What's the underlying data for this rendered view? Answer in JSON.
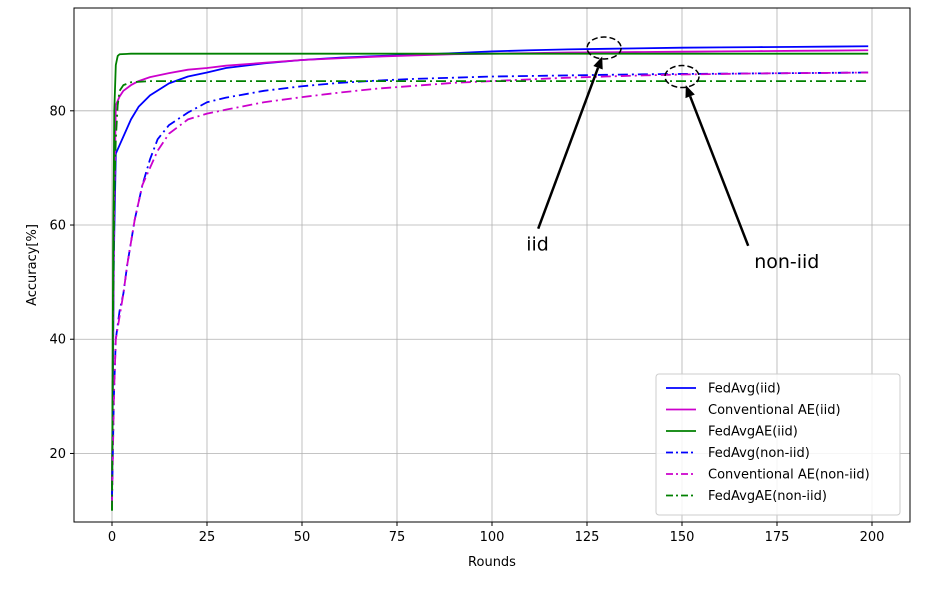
{
  "chart_data": {
    "type": "line",
    "title": "",
    "xlabel": "Rounds",
    "ylabel": "Accuracy[%]",
    "xlim": [
      -10,
      210
    ],
    "ylim": [
      8,
      98
    ],
    "xticks": [
      0,
      25,
      50,
      75,
      100,
      125,
      150,
      175,
      200
    ],
    "yticks": [
      20,
      40,
      60,
      80
    ],
    "grid": true,
    "legend_position": "lower-right",
    "series": [
      {
        "name": "FedAvg(iid)",
        "color": "#0000ff",
        "linestyle": "solid",
        "x": [
          0,
          0.5,
          1,
          2,
          3,
          5,
          7,
          10,
          15,
          20,
          25,
          30,
          40,
          50,
          60,
          70,
          80,
          90,
          100,
          110,
          120,
          130,
          140,
          150,
          160,
          170,
          180,
          190,
          199
        ],
        "y": [
          12.5,
          55,
          72.5,
          74,
          75.5,
          78.5,
          80.7,
          82.7,
          84.8,
          86,
          86.7,
          87.5,
          88.3,
          88.9,
          89.3,
          89.6,
          89.8,
          90.1,
          90.4,
          90.6,
          90.75,
          90.85,
          90.95,
          91.05,
          91.1,
          91.15,
          91.2,
          91.25,
          91.3
        ]
      },
      {
        "name": "Conventional AE(iid)",
        "color": "#cc00cc",
        "linestyle": "solid",
        "x": [
          0,
          0.5,
          1,
          2,
          3,
          5,
          7,
          10,
          15,
          20,
          25,
          30,
          40,
          50,
          60,
          70,
          80,
          90,
          100,
          110,
          120,
          130,
          140,
          150,
          160,
          170,
          180,
          190,
          199
        ],
        "y": [
          14,
          60,
          81,
          82.5,
          83.5,
          84.5,
          85.2,
          85.9,
          86.6,
          87.2,
          87.5,
          87.9,
          88.4,
          88.9,
          89.2,
          89.5,
          89.7,
          89.9,
          90,
          90.1,
          90.2,
          90.25,
          90.3,
          90.35,
          90.4,
          90.45,
          90.5,
          90.55,
          90.6
        ]
      },
      {
        "name": "FedAvgAE(iid)",
        "color": "#008000",
        "linestyle": "solid",
        "x": [
          0,
          0.3,
          0.6,
          1,
          1.5,
          2,
          5,
          10,
          25,
          50,
          75,
          100,
          125,
          150,
          175,
          199
        ],
        "y": [
          10,
          55,
          80,
          88,
          89.6,
          89.9,
          90,
          90,
          90,
          90,
          90,
          90,
          90,
          90,
          90,
          90
        ]
      },
      {
        "name": "FedAvg(non-iid)",
        "color": "#0000ff",
        "linestyle": "dashdot",
        "x": [
          0,
          0.5,
          1,
          2,
          3,
          4,
          5,
          6,
          7,
          8,
          10,
          12,
          15,
          20,
          25,
          30,
          40,
          50,
          60,
          70,
          80,
          90,
          100,
          110,
          120,
          130,
          140,
          150,
          160,
          170,
          180,
          190,
          199
        ],
        "y": [
          12,
          30,
          40,
          45,
          48,
          53,
          57,
          61,
          64,
          67,
          71.5,
          75,
          77.5,
          79.7,
          81.5,
          82.3,
          83.5,
          84.3,
          84.9,
          85.3,
          85.6,
          85.8,
          86,
          86.1,
          86.2,
          86.3,
          86.4,
          86.45,
          86.5,
          86.55,
          86.6,
          86.65,
          86.7
        ]
      },
      {
        "name": "Conventional AE(non-iid)",
        "color": "#cc00cc",
        "linestyle": "dashdot",
        "x": [
          0,
          0.5,
          1,
          2,
          3,
          4,
          5,
          6,
          7,
          8,
          10,
          12,
          15,
          20,
          25,
          30,
          40,
          50,
          60,
          70,
          80,
          90,
          100,
          110,
          120,
          130,
          140,
          150,
          160,
          170,
          180,
          190,
          199
        ],
        "y": [
          11,
          30,
          40,
          44,
          48,
          53,
          57,
          61,
          64,
          67,
          70,
          73,
          76,
          78.5,
          79.5,
          80.2,
          81.5,
          82.4,
          83.2,
          83.9,
          84.4,
          84.9,
          85.2,
          85.5,
          85.8,
          86,
          86.2,
          86.35,
          86.45,
          86.55,
          86.6,
          86.65,
          86.7
        ]
      },
      {
        "name": "FedAvgAE(non-iid)",
        "color": "#008000",
        "linestyle": "dashdot",
        "x": [
          0,
          0.3,
          0.6,
          1,
          1.5,
          2,
          3,
          5,
          10,
          25,
          50,
          75,
          100,
          125,
          150,
          175,
          199
        ],
        "y": [
          10,
          45,
          65,
          75,
          81,
          83.5,
          84.5,
          85,
          85.2,
          85.2,
          85.2,
          85.2,
          85.2,
          85.2,
          85.2,
          85.2,
          85.2
        ]
      }
    ],
    "annotations": [
      {
        "text": "iid",
        "text_x": 109,
        "text_y": 55.5,
        "target_x": 129,
        "target_y": 89.5,
        "ellipse_cx": 129.5,
        "ellipse_cy": 91.0
      },
      {
        "text": "non-iid",
        "text_x": 169,
        "text_y": 52.5,
        "target_x": 151,
        "target_y": 84.5,
        "ellipse_cx": 150,
        "ellipse_cy": 86.0
      }
    ]
  }
}
